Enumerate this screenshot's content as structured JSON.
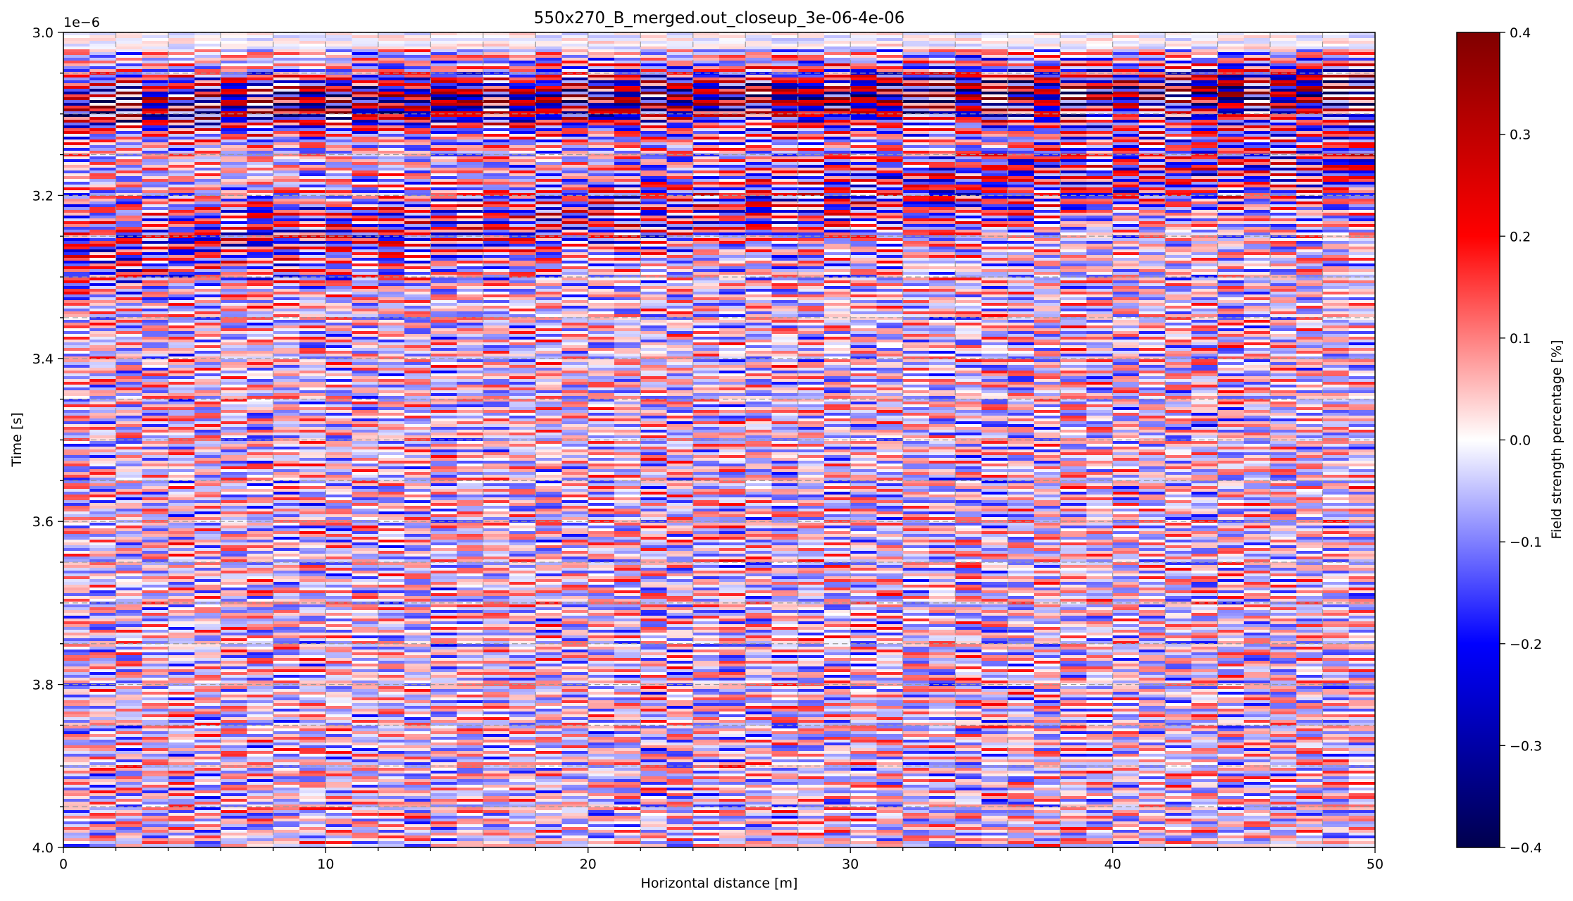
{
  "chart_data": {
    "type": "heatmap",
    "title": "550x270_B_merged.out_closeup_3e-06-4e-06",
    "xlabel": "Horizontal distance [m]",
    "ylabel": "Time [s]",
    "y_offset_label": "1e−6",
    "xlim": [
      0,
      50
    ],
    "ylim": [
      3.0,
      4.0
    ],
    "y_scale_multiplier": 1e-06,
    "y_inverted": true,
    "x_ticks": [
      0,
      10,
      20,
      30,
      40,
      50
    ],
    "x_tick_labels": [
      "0",
      "10",
      "20",
      "30",
      "40",
      "50"
    ],
    "y_ticks": [
      3.0,
      3.2,
      3.4,
      3.6,
      3.8,
      4.0
    ],
    "y_tick_labels": [
      "3.0",
      "3.2",
      "3.4",
      "3.6",
      "3.8",
      "4.0"
    ],
    "colormap": "seismic",
    "colormap_stops": [
      "#00004d",
      "#0000ff",
      "#ffffff",
      "#ff0000",
      "#800000"
    ],
    "colorbar": {
      "label": "Field strength percentage [%]",
      "range": [
        -0.4,
        0.4
      ],
      "ticks": [
        0.4,
        0.3,
        0.2,
        0.1,
        0.0,
        -0.1,
        -0.2,
        -0.3,
        -0.4
      ],
      "tick_labels": [
        "0.4",
        "0.3",
        "0.2",
        "0.1",
        "0.0",
        "−0.1",
        "−0.2",
        "−0.3",
        "−0.4"
      ]
    },
    "trace_count": 50,
    "grid": true,
    "grid_style": "dashed vertical and horizontal lines",
    "description_of_data": "Radargram of alternating positive (red) and negative (blue) field strength bands per trace; strong bands near 3.05-3.35e-6 s that rise from left to right, weaker noisy bands below."
  }
}
